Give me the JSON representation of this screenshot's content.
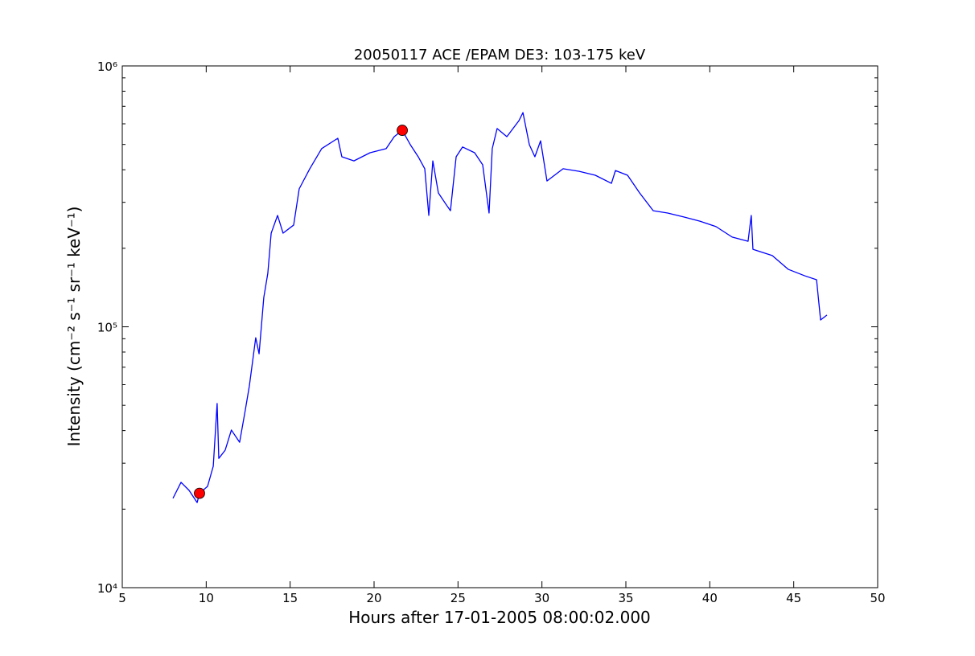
{
  "chart_data": {
    "type": "line",
    "title": "20050117 ACE /EPAM DE3: 103-175 keV",
    "xlabel": "Hours after 17-01-2005 08:00:02.000",
    "ylabel": "Intensity (cm⁻² s⁻¹ sr⁻¹ keV⁻¹)",
    "log_y": true,
    "xlim": [
      5,
      50
    ],
    "xticks": [
      5,
      10,
      15,
      20,
      25,
      30,
      35,
      40,
      45,
      50
    ],
    "ylim": [
      10000,
      1000000
    ],
    "yticks": [
      {
        "value": 10000,
        "label": "10⁴"
      },
      {
        "value": 100000,
        "label": "10⁵"
      },
      {
        "value": 1000000,
        "label": "10⁶"
      }
    ],
    "yminorticks": [
      20000,
      30000,
      40000,
      50000,
      60000,
      70000,
      80000,
      90000,
      200000,
      300000,
      400000,
      500000,
      600000,
      700000,
      800000,
      900000
    ],
    "color": "#0000ff",
    "x": [
      8.02,
      8.5,
      8.98,
      9.46,
      9.6,
      10.08,
      10.42,
      10.65,
      10.75,
      11.13,
      11.5,
      11.99,
      12.33,
      12.57,
      12.95,
      13.15,
      13.43,
      13.67,
      13.87,
      14.25,
      14.58,
      15.21,
      15.54,
      16.17,
      16.88,
      17.84,
      18.08,
      18.8,
      19.76,
      20.72,
      21.2,
      21.68,
      22.16,
      22.63,
      23.02,
      23.26,
      23.5,
      23.83,
      24.31,
      24.55,
      24.89,
      25.27,
      25.99,
      26.47,
      26.85,
      27.04,
      27.33,
      27.91,
      28.63,
      28.87,
      29.25,
      29.58,
      29.92,
      30.3,
      31.26,
      32.22,
      33.18,
      34.14,
      34.38,
      35.1,
      35.82,
      36.63,
      37.49,
      38.45,
      39.41,
      40.37,
      41.33,
      42.28,
      42.47,
      42.57,
      43.72,
      44.68,
      45.64,
      46.36,
      46.6,
      46.98
    ],
    "values": [
      22000,
      25350,
      23600,
      21200,
      23000,
      24450,
      29200,
      50800,
      31300,
      33650,
      40200,
      36100,
      48000,
      59300,
      90800,
      78800,
      129500,
      160300,
      228500,
      267200,
      228500,
      245500,
      338000,
      403500,
      482000,
      528000,
      448600,
      432500,
      464700,
      482000,
      535600,
      566500,
      499000,
      448600,
      403500,
      267200,
      432500,
      326000,
      293100,
      278600,
      448600,
      488900,
      464700,
      417800,
      272900,
      482000,
      575400,
      535600,
      616600,
      662200,
      499000,
      448600,
      516400,
      362200,
      403500,
      394500,
      381000,
      354800,
      397200,
      381000,
      326000,
      278600,
      272900,
      263600,
      254100,
      242100,
      220800,
      212800,
      267200,
      198200,
      187500,
      166000,
      157000,
      151400,
      106200,
      110900
    ],
    "markers": {
      "color": "#ff0000",
      "x": [
        9.6,
        21.68
      ],
      "values": [
        23000,
        566500
      ]
    }
  }
}
